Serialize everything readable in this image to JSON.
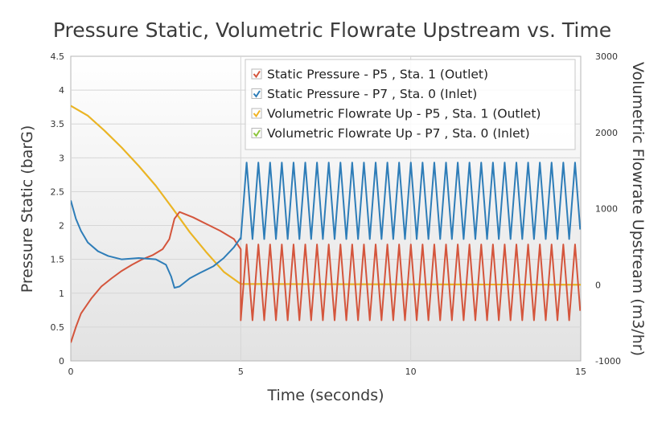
{
  "chart_data": {
    "type": "line",
    "title": "Pressure Static, Volumetric Flowrate Upstream vs. Time",
    "xlabel": "Time (seconds)",
    "ylabel_left": "Pressure Static (barG)",
    "ylabel_right": "Volumetric Flowrate Upstream (m3/hr)",
    "xlim": [
      0,
      15
    ],
    "ylim_left": [
      0,
      4.5
    ],
    "ylim_right": [
      -1000,
      3000
    ],
    "x_ticks": [
      "0",
      "5",
      "10",
      "15"
    ],
    "y_left_ticks": [
      "0",
      "0.5",
      "1",
      "1.5",
      "2",
      "2.5",
      "3",
      "3.5",
      "4",
      "4.5"
    ],
    "y_right_ticks": [
      "-1000",
      "0",
      "1000",
      "2000",
      "3000"
    ],
    "grid": true,
    "legend_position": "top-right",
    "series": [
      {
        "name": "Static Pressure - P5 , Sta. 1 (Outlet)",
        "color": "#d4553c",
        "axis": "left",
        "points": [
          [
            0,
            0.27
          ],
          [
            0.15,
            0.5
          ],
          [
            0.3,
            0.7
          ],
          [
            0.6,
            0.92
          ],
          [
            0.9,
            1.1
          ],
          [
            1.2,
            1.22
          ],
          [
            1.5,
            1.33
          ],
          [
            1.8,
            1.42
          ],
          [
            2.1,
            1.5
          ],
          [
            2.4,
            1.56
          ],
          [
            2.7,
            1.65
          ],
          [
            2.9,
            1.8
          ],
          [
            3.05,
            2.1
          ],
          [
            3.2,
            2.2
          ],
          [
            3.6,
            2.12
          ],
          [
            4.0,
            2.02
          ],
          [
            4.4,
            1.92
          ],
          [
            4.8,
            1.8
          ],
          [
            5.0,
            1.65
          ]
        ],
        "oscillation": {
          "start": 5.0,
          "end": 15.0,
          "period": 0.345,
          "min": 0.6,
          "max": 1.72
        }
      },
      {
        "name": "Static Pressure - P7 , Sta. 0 (Inlet)",
        "color": "#2e7db8",
        "axis": "left",
        "points": [
          [
            0,
            2.37
          ],
          [
            0.15,
            2.1
          ],
          [
            0.3,
            1.92
          ],
          [
            0.5,
            1.75
          ],
          [
            0.8,
            1.62
          ],
          [
            1.1,
            1.55
          ],
          [
            1.5,
            1.5
          ],
          [
            2.0,
            1.52
          ],
          [
            2.5,
            1.5
          ],
          [
            2.8,
            1.42
          ],
          [
            2.95,
            1.25
          ],
          [
            3.05,
            1.08
          ],
          [
            3.2,
            1.1
          ],
          [
            3.5,
            1.22
          ],
          [
            3.8,
            1.3
          ],
          [
            4.2,
            1.4
          ],
          [
            4.5,
            1.52
          ],
          [
            4.8,
            1.68
          ],
          [
            5.0,
            1.82
          ]
        ],
        "oscillation": {
          "start": 5.0,
          "end": 15.0,
          "period": 0.345,
          "min": 1.8,
          "max": 2.93
        }
      },
      {
        "name": "Volumetric Flowrate Up - P5 , Sta. 1 (Outlet)",
        "color": "#f0b323",
        "axis": "right",
        "points": [
          [
            0,
            2350
          ],
          [
            0.5,
            2220
          ],
          [
            1.0,
            2020
          ],
          [
            1.5,
            1800
          ],
          [
            2.0,
            1560
          ],
          [
            2.5,
            1300
          ],
          [
            3.0,
            1000
          ],
          [
            3.5,
            690
          ],
          [
            4.0,
            420
          ],
          [
            4.5,
            170
          ],
          [
            5.0,
            10
          ],
          [
            15.0,
            0
          ]
        ]
      },
      {
        "name": "Volumetric Flowrate Up - P7 , Sta. 0 (Inlet)",
        "color": "#8cc43c",
        "axis": "right",
        "points": [
          [
            0,
            2350
          ],
          [
            0.5,
            2220
          ],
          [
            1.0,
            2020
          ],
          [
            1.5,
            1800
          ],
          [
            2.0,
            1560
          ],
          [
            2.5,
            1300
          ],
          [
            3.0,
            1000
          ],
          [
            3.5,
            690
          ],
          [
            4.0,
            420
          ],
          [
            4.5,
            170
          ],
          [
            5.0,
            10
          ],
          [
            15.0,
            0
          ]
        ]
      }
    ]
  }
}
